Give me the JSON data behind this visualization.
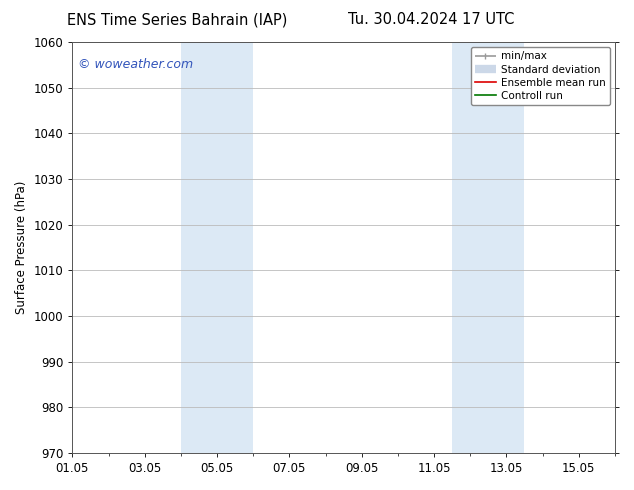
{
  "title_left": "ENS Time Series Bahrain (IAP)",
  "title_right": "Tu. 30.04.2024 17 UTC",
  "ylabel": "Surface Pressure (hPa)",
  "ylim": [
    970,
    1060
  ],
  "yticks": [
    970,
    980,
    990,
    1000,
    1010,
    1020,
    1030,
    1040,
    1050,
    1060
  ],
  "xtick_labels": [
    "01.05",
    "03.05",
    "05.05",
    "07.05",
    "09.05",
    "11.05",
    "13.05",
    "15.05"
  ],
  "xtick_positions": [
    0,
    2,
    4,
    6,
    8,
    10,
    12,
    14
  ],
  "xlim": [
    0,
    15
  ],
  "shaded_bands": [
    {
      "x_start": 3.0,
      "x_end": 5.0,
      "color": "#dce9f5"
    },
    {
      "x_start": 10.5,
      "x_end": 12.5,
      "color": "#dce9f5"
    }
  ],
  "watermark_text": "© woweather.com",
  "watermark_color": "#3355bb",
  "background_color": "#ffffff",
  "plot_bg_color": "#ffffff",
  "grid_color": "#bbbbbb",
  "legend_items": [
    {
      "label": "min/max",
      "color": "#999999",
      "lw": 1.2
    },
    {
      "label": "Standard deviation",
      "color": "#ccd8e8",
      "lw": 6
    },
    {
      "label": "Ensemble mean run",
      "color": "#dd0000",
      "lw": 1.2
    },
    {
      "label": "Controll run",
      "color": "#007700",
      "lw": 1.2
    }
  ],
  "title_fontsize": 10.5,
  "tick_fontsize": 8.5,
  "ylabel_fontsize": 8.5,
  "legend_fontsize": 7.5,
  "watermark_fontsize": 9
}
